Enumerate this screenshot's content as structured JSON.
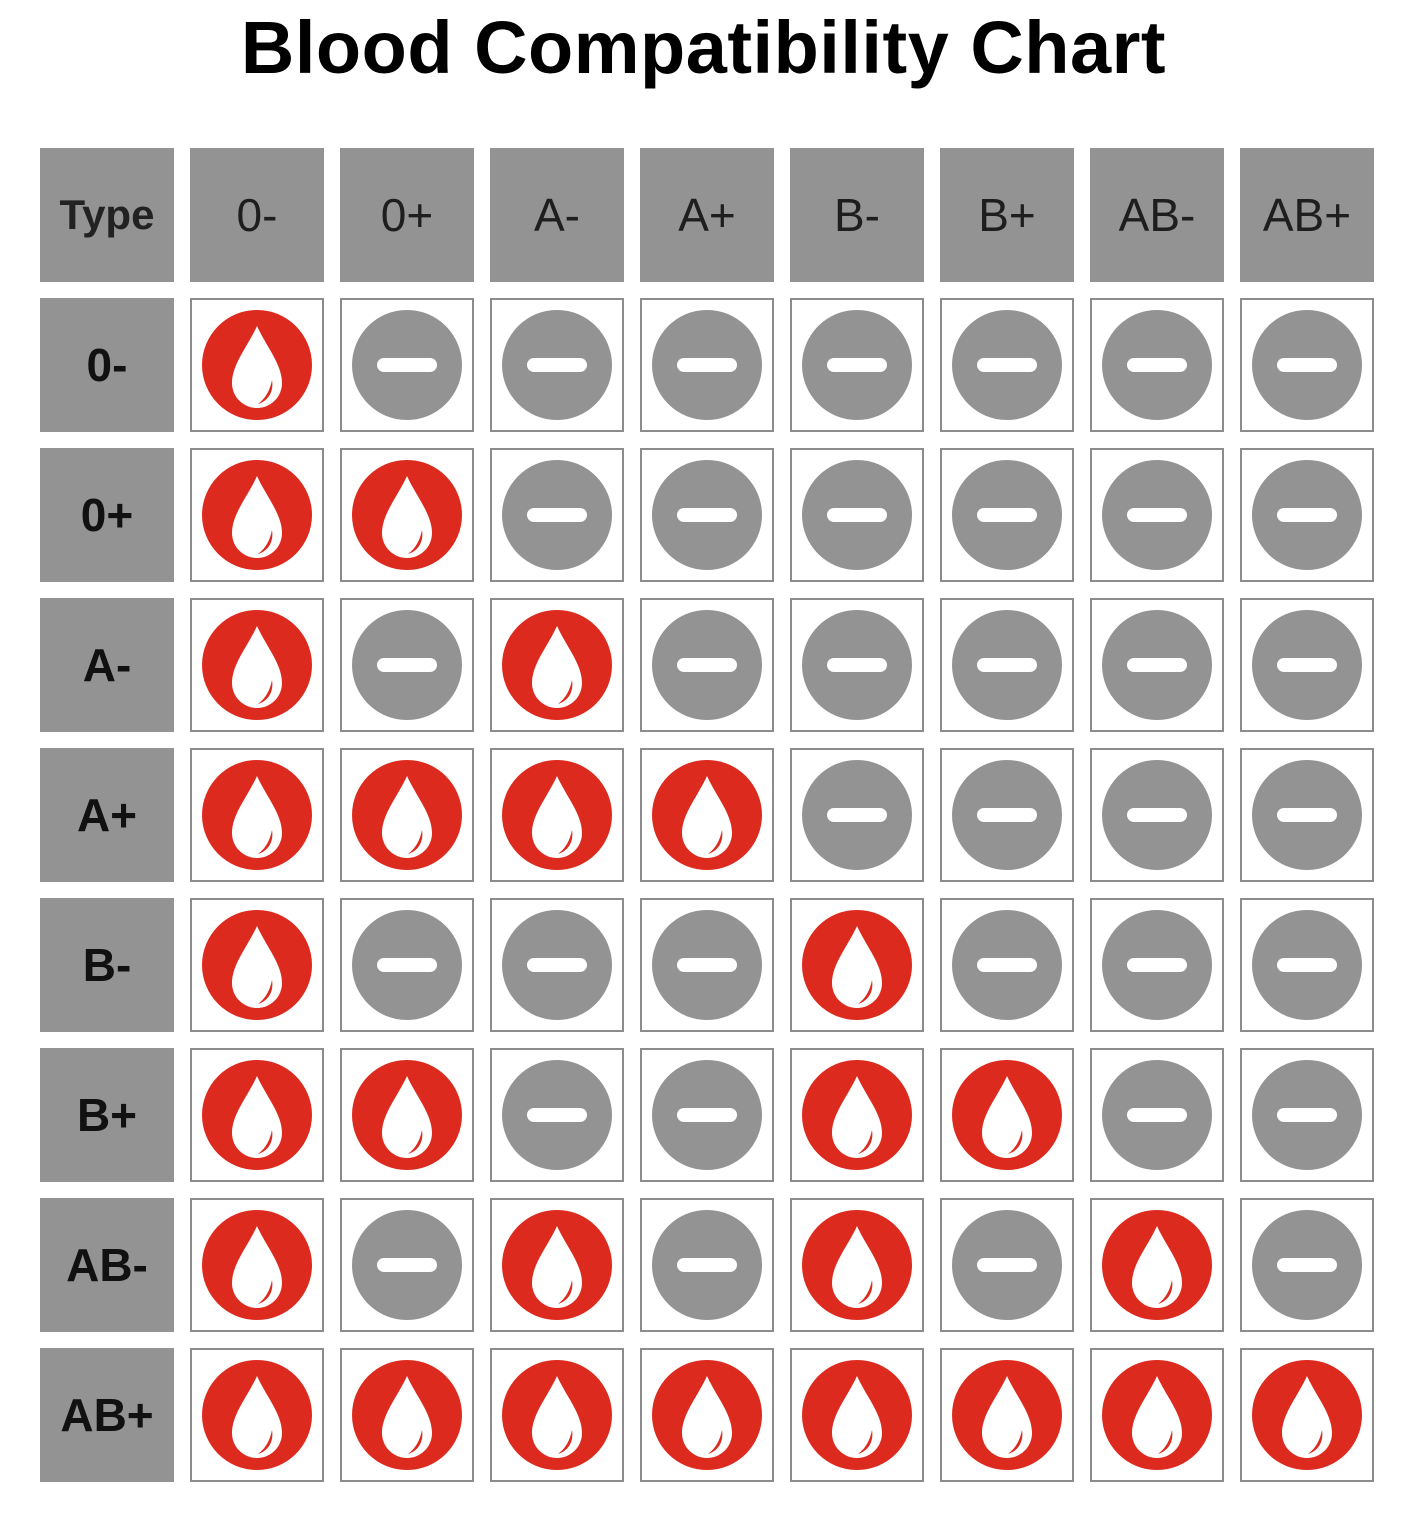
{
  "title": "Blood Compatibility Chart",
  "corner_label": "Type",
  "columns": [
    "0-",
    "0+",
    "A-",
    "A+",
    "B-",
    "B+",
    "AB-",
    "AB+"
  ],
  "rows": [
    {
      "label": "0-",
      "values": [
        1,
        0,
        0,
        0,
        0,
        0,
        0,
        0
      ]
    },
    {
      "label": "0+",
      "values": [
        1,
        1,
        0,
        0,
        0,
        0,
        0,
        0
      ]
    },
    {
      "label": "A-",
      "values": [
        1,
        0,
        1,
        0,
        0,
        0,
        0,
        0
      ]
    },
    {
      "label": "A+",
      "values": [
        1,
        1,
        1,
        1,
        0,
        0,
        0,
        0
      ]
    },
    {
      "label": "B-",
      "values": [
        1,
        0,
        0,
        0,
        1,
        0,
        0,
        0
      ]
    },
    {
      "label": "B+",
      "values": [
        1,
        1,
        0,
        0,
        1,
        1,
        0,
        0
      ]
    },
    {
      "label": "AB-",
      "values": [
        1,
        0,
        1,
        0,
        1,
        0,
        1,
        0
      ]
    },
    {
      "label": "AB+",
      "values": [
        1,
        1,
        1,
        1,
        1,
        1,
        1,
        1
      ]
    }
  ],
  "legend": {
    "compatible_icon": "blood-drop-icon",
    "incompatible_icon": "minus-circle-icon"
  },
  "colors": {
    "compatible": "#dd2a1f",
    "incompatible": "#939393",
    "header_bg": "#939393",
    "cell_border": "#8c8c8c"
  }
}
